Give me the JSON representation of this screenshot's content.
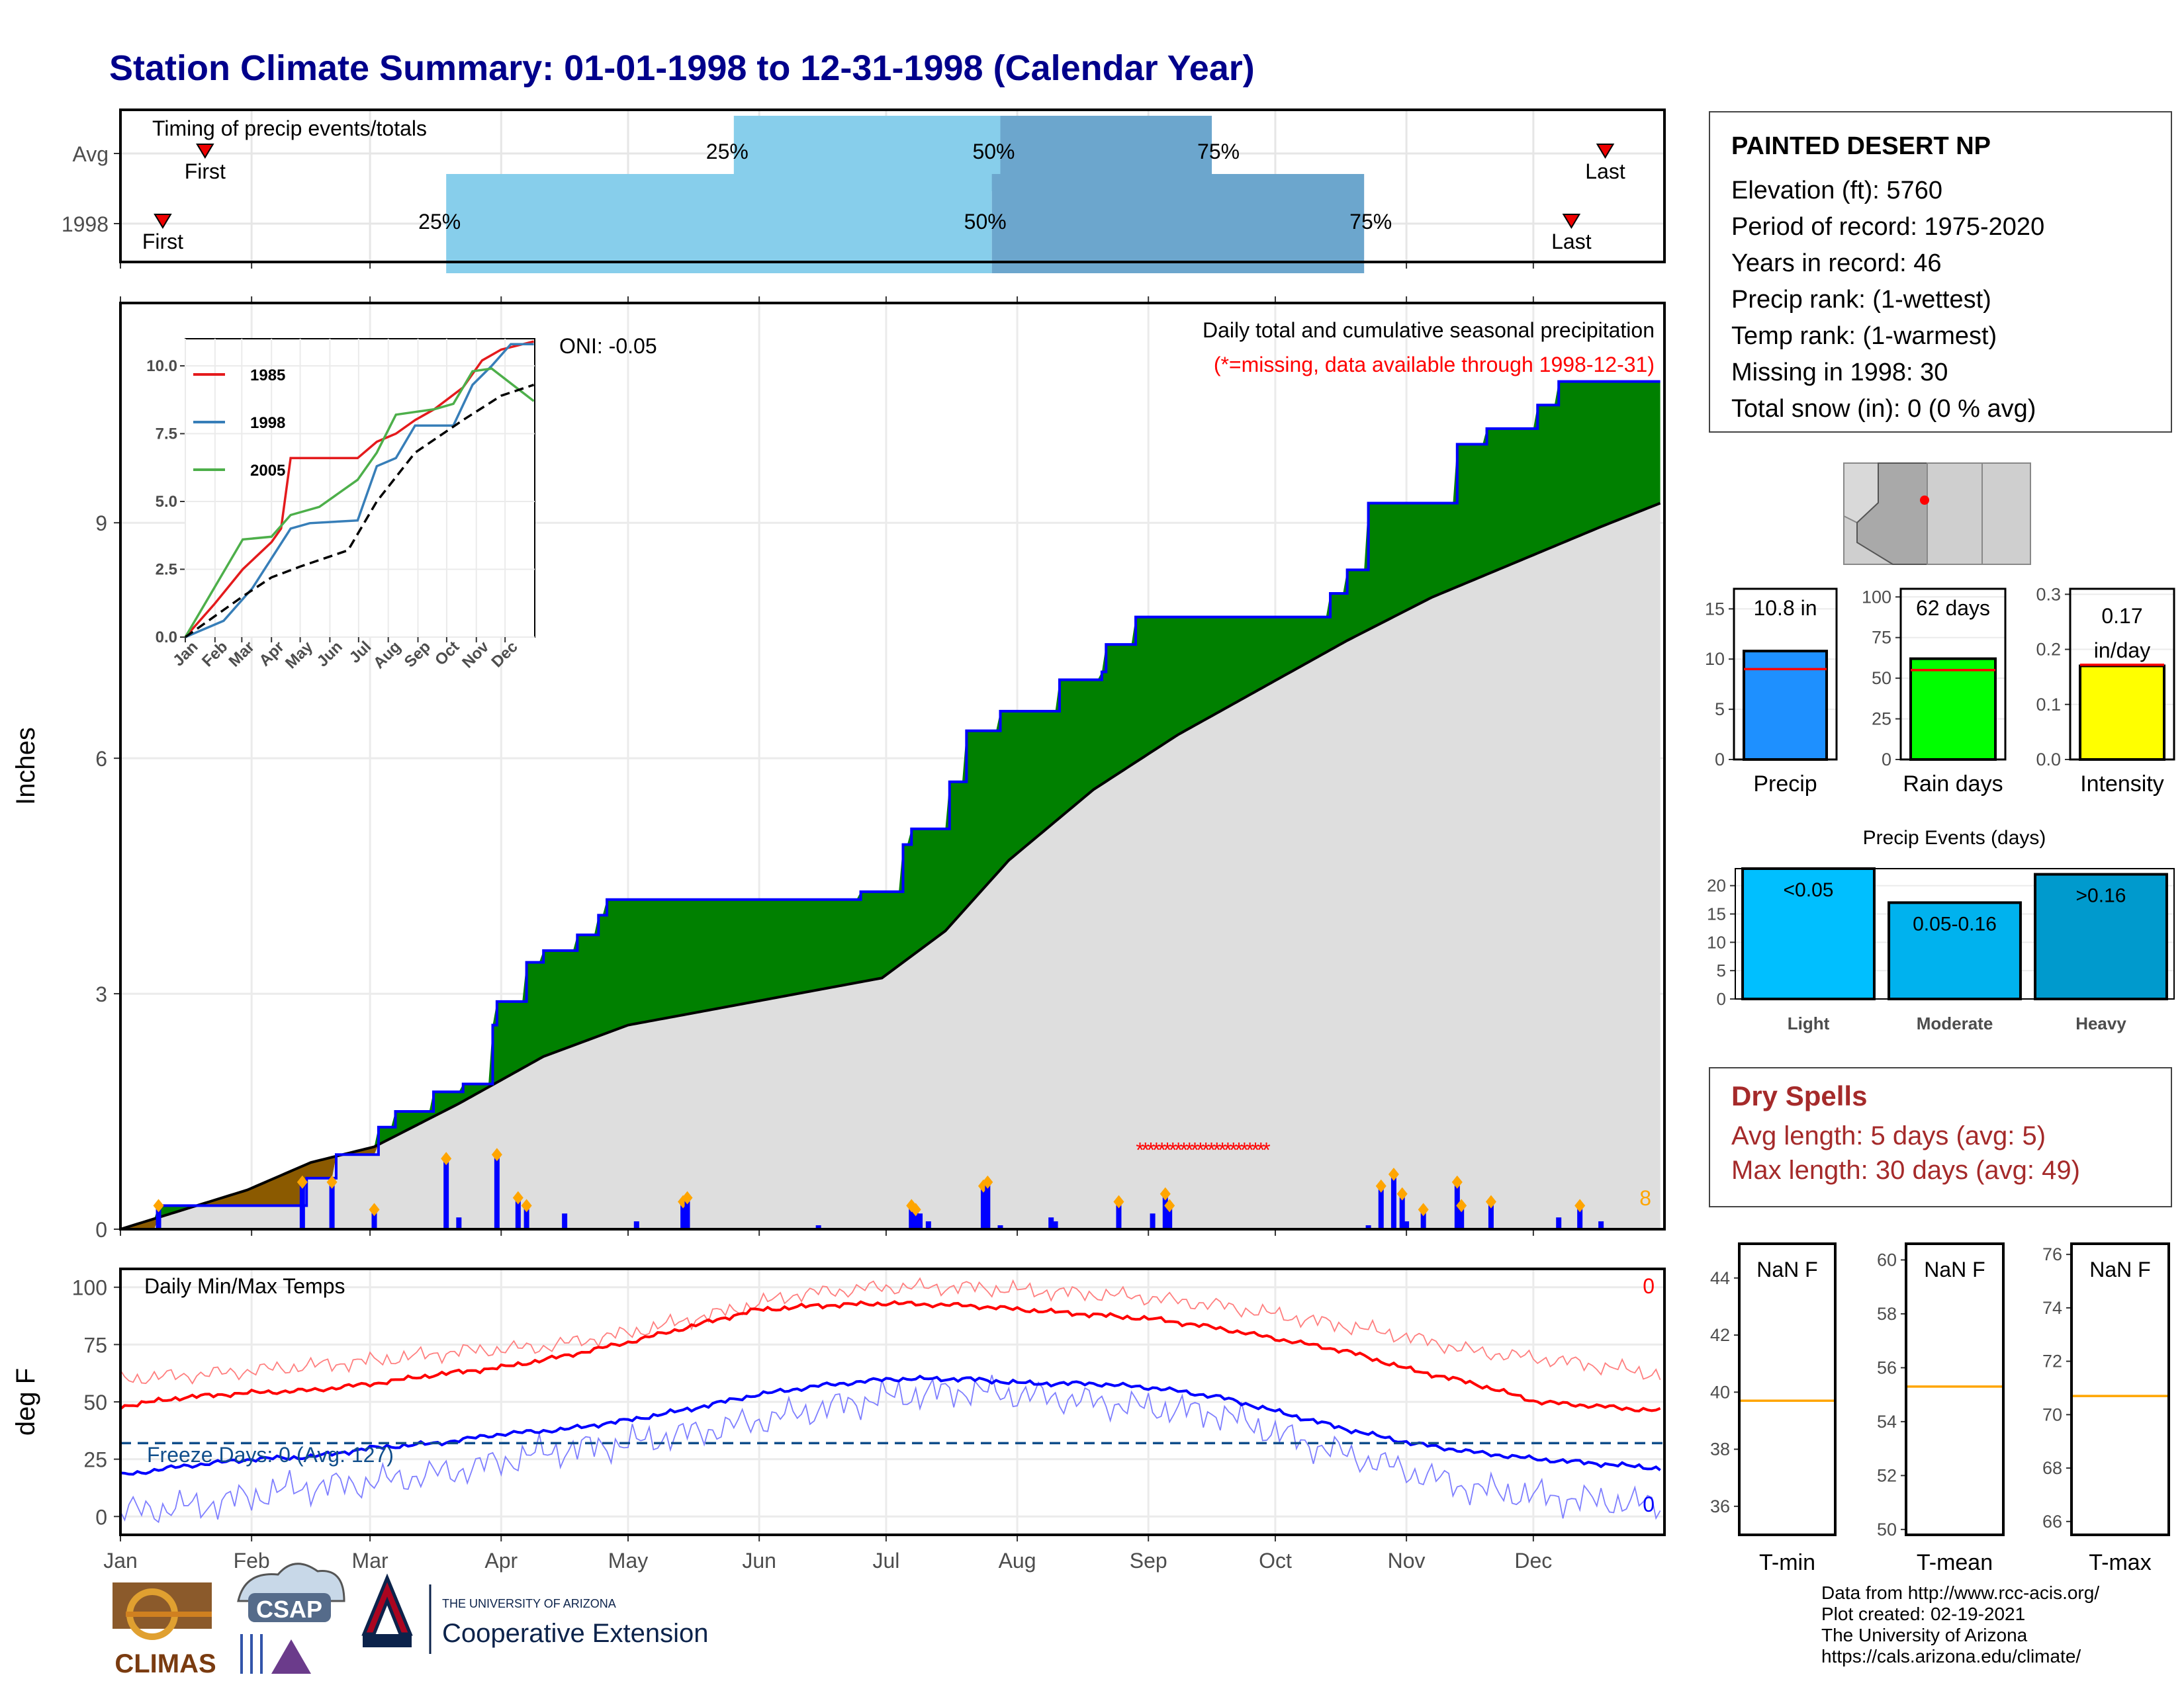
{
  "title": "Station Climate Summary: 01-01-1998 to 12-31-1998 (Calendar Year)",
  "timing": {
    "label": "Timing of precip events/totals",
    "rows": [
      {
        "name": "Avg",
        "first_doy": 20,
        "q25_doy": 145,
        "q50_doy": 208,
        "q75_doy": 258,
        "last_doy": 351
      },
      {
        "name": "1998",
        "first_doy": 10,
        "q25_doy": 77,
        "q50_doy": 206,
        "q75_doy": 294,
        "last_doy": 343
      }
    ],
    "first_label": "First",
    "last_label": "Last",
    "q25_label": "25%",
    "q50_label": "50%",
    "q75_label": "75%"
  },
  "precip": {
    "ylabel": "Inches",
    "yticks": [
      "0",
      "3",
      "6",
      "9"
    ],
    "annot_title": "Daily total and cumulative seasonal precipitation",
    "annot_missing": "(*=missing, data available through 1998-12-31)",
    "oni": "ONI: -0.05",
    "count_label": "8",
    "months": [
      "Jan",
      "Feb",
      "Mar",
      "Apr",
      "May",
      "Jun",
      "Jul",
      "Aug",
      "Sep",
      "Oct",
      "Nov",
      "Dec"
    ]
  },
  "inset": {
    "yticks": [
      "0.0",
      "2.5",
      "5.0",
      "7.5",
      "10.0"
    ],
    "months": [
      "Jan",
      "Feb",
      "Mar",
      "Apr",
      "May",
      "Jun",
      "Jul",
      "Aug",
      "Sep",
      "Oct",
      "Nov",
      "Dec"
    ],
    "legend": [
      {
        "name": "1985",
        "color": "#e41a1c"
      },
      {
        "name": "1998",
        "color": "#377eb8"
      },
      {
        "name": "2005",
        "color": "#4daf4a"
      }
    ]
  },
  "temps": {
    "ylabel": "deg F",
    "label": "Daily Min/Max Temps",
    "freeze": "Freeze Days: 0 (Avg: 127)",
    "max_count": "0",
    "min_count": "0",
    "yticks": [
      "0",
      "25",
      "50",
      "75",
      "100"
    ],
    "months": [
      "Jan",
      "Feb",
      "Mar",
      "Apr",
      "May",
      "Jun",
      "Jul",
      "Aug",
      "Sep",
      "Oct",
      "Nov",
      "Dec"
    ]
  },
  "station": {
    "name": "PAINTED DESERT NP",
    "lines": [
      "Elevation (ft): 5760",
      "Period of record: 1975-2020",
      "Years in record: 46",
      "Precip rank:  (1-wettest)",
      "Temp rank:  (1-warmest)",
      "Missing in 1998: 30",
      "Total snow (in): 0 (0 % avg)"
    ]
  },
  "minibars": [
    {
      "label": "Precip",
      "value_label": "10.8 in",
      "color": "#1e90ff",
      "yticks": [
        "0",
        "5",
        "10",
        "15"
      ]
    },
    {
      "label": "Rain days",
      "value_label": "62 days",
      "color": "#00ff00",
      "yticks": [
        "0",
        "25",
        "50",
        "75",
        "100"
      ]
    },
    {
      "label": "Intensity",
      "value_label_1": "0.17",
      "value_label_2": "in/day",
      "color": "#ffff00",
      "yticks": [
        "0.0",
        "0.1",
        "0.2",
        "0.3"
      ]
    }
  ],
  "events": {
    "title": "Precip Events (days)",
    "yticks": [
      "0",
      "5",
      "10",
      "15",
      "20"
    ],
    "bars": [
      {
        "category": "Light",
        "label": "<0.05",
        "value": 23,
        "color": "#00bfff"
      },
      {
        "category": "Moderate",
        "label": "0.05-0.16",
        "value": 17,
        "color": "#00b2ee"
      },
      {
        "category": "Heavy",
        "label": ">0.16",
        "value": 22,
        "color": "#009acd"
      }
    ]
  },
  "dry_spells": {
    "title": "Dry Spells",
    "avg": "Avg length: 5 days (avg: 5)",
    "max": "Max length: 30 days (avg: 49)"
  },
  "tbars": [
    {
      "label": "T-min",
      "value_label": "NaN F",
      "yticks": [
        "36",
        "38",
        "40",
        "42",
        "44"
      ]
    },
    {
      "label": "T-mean",
      "value_label": "NaN F",
      "yticks": [
        "50",
        "52",
        "54",
        "56",
        "58",
        "60"
      ]
    },
    {
      "label": "T-max",
      "value_label": "NaN F",
      "yticks": [
        "66",
        "68",
        "70",
        "72",
        "74",
        "76"
      ]
    }
  ],
  "logos": {
    "climas": "CLIMAS",
    "csap": "CSAP",
    "ua_small": "THE UNIVERSITY OF ARIZONA",
    "ua_big": "Cooperative Extension"
  },
  "credits": [
    "Data from http://www.rcc-acis.org/",
    "Plot created: 02-19-2021",
    "The University of Arizona",
    "https://cals.arizona.edu/climate/"
  ],
  "chart_data": [
    {
      "type": "area",
      "title": "Daily total and cumulative seasonal precipitation",
      "ylabel": "Inches",
      "ylim": [
        0,
        11.8
      ],
      "x_units": "day of year",
      "cumulative_1998": [
        [
          0,
          0
        ],
        [
          9,
          0.3
        ],
        [
          43,
          0.3
        ],
        [
          44,
          0.65
        ],
        [
          50,
          0.65
        ],
        [
          51,
          0.95
        ],
        [
          60,
          0.95
        ],
        [
          61,
          1.3
        ],
        [
          64,
          1.3
        ],
        [
          65,
          1.5
        ],
        [
          73,
          1.5
        ],
        [
          74,
          1.75
        ],
        [
          80,
          1.75
        ],
        [
          81,
          1.85
        ],
        [
          87,
          1.85
        ],
        [
          88,
          2.6
        ],
        [
          89,
          2.9
        ],
        [
          95,
          2.9
        ],
        [
          96,
          3.4
        ],
        [
          100,
          3.55
        ],
        [
          108,
          3.75
        ],
        [
          112,
          3.75
        ],
        [
          113,
          4.0
        ],
        [
          115,
          4.2
        ],
        [
          175,
          4.3
        ],
        [
          184,
          4.3
        ],
        [
          185,
          4.9
        ],
        [
          187,
          5.1
        ],
        [
          195,
          5.1
        ],
        [
          196,
          5.7
        ],
        [
          200,
          6.35
        ],
        [
          207,
          6.35
        ],
        [
          208,
          6.6
        ],
        [
          221,
          6.6
        ],
        [
          222,
          7.0
        ],
        [
          232,
          7.1
        ],
        [
          233,
          7.45
        ],
        [
          240,
          7.8
        ],
        [
          285,
          7.8
        ],
        [
          286,
          8.1
        ],
        [
          290,
          8.4
        ],
        [
          295,
          9.25
        ],
        [
          315,
          9.25
        ],
        [
          316,
          10.0
        ],
        [
          323,
          10.2
        ],
        [
          335,
          10.5
        ],
        [
          340,
          10.8
        ],
        [
          364,
          10.8
        ]
      ],
      "cumulative_avg": [
        [
          0,
          0
        ],
        [
          30,
          0.5
        ],
        [
          45,
          0.85
        ],
        [
          60,
          1.05
        ],
        [
          80,
          1.6
        ],
        [
          100,
          2.2
        ],
        [
          120,
          2.6
        ],
        [
          150,
          2.9
        ],
        [
          180,
          3.2
        ],
        [
          195,
          3.8
        ],
        [
          210,
          4.7
        ],
        [
          230,
          5.6
        ],
        [
          250,
          6.3
        ],
        [
          270,
          6.9
        ],
        [
          290,
          7.5
        ],
        [
          310,
          8.05
        ],
        [
          330,
          8.5
        ],
        [
          350,
          8.95
        ],
        [
          364,
          9.25
        ]
      ],
      "daily": [
        [
          9,
          0.3
        ],
        [
          43,
          0.6
        ],
        [
          50,
          0.6
        ],
        [
          60,
          0.25
        ],
        [
          77,
          0.9
        ],
        [
          80,
          0.15
        ],
        [
          89,
          0.95
        ],
        [
          94,
          0.4
        ],
        [
          96,
          0.3
        ],
        [
          105,
          0.2
        ],
        [
          122,
          0.1
        ],
        [
          133,
          0.35
        ],
        [
          134,
          0.4
        ],
        [
          165,
          0.05
        ],
        [
          187,
          0.3
        ],
        [
          188,
          0.25
        ],
        [
          189,
          0.2
        ],
        [
          191,
          0.1
        ],
        [
          204,
          0.55
        ],
        [
          205,
          0.6
        ],
        [
          208,
          0.05
        ],
        [
          220,
          0.15
        ],
        [
          221,
          0.1
        ],
        [
          236,
          0.35
        ],
        [
          244,
          0.2
        ],
        [
          247,
          0.45
        ],
        [
          248,
          0.3
        ],
        [
          295,
          0.05
        ],
        [
          298,
          0.55
        ],
        [
          301,
          0.7
        ],
        [
          303,
          0.45
        ],
        [
          304,
          0.1
        ],
        [
          308,
          0.25
        ],
        [
          316,
          0.6
        ],
        [
          317,
          0.3
        ],
        [
          324,
          0.35
        ],
        [
          340,
          0.15
        ],
        [
          345,
          0.3
        ],
        [
          350,
          0.1
        ]
      ],
      "dry_spell": [
        241,
        272
      ]
    },
    {
      "type": "line",
      "title": "Daily Min/Max Temps",
      "ylabel": "deg F",
      "ylim": [
        -8,
        108
      ],
      "freeze_line": 32,
      "avg_max": [
        [
          0,
          48
        ],
        [
          15,
          52
        ],
        [
          31,
          54
        ],
        [
          45,
          55
        ],
        [
          60,
          58
        ],
        [
          75,
          62
        ],
        [
          90,
          65
        ],
        [
          105,
          70
        ],
        [
          120,
          76
        ],
        [
          135,
          83
        ],
        [
          150,
          90
        ],
        [
          165,
          92
        ],
        [
          182,
          93
        ],
        [
          200,
          92
        ],
        [
          215,
          90
        ],
        [
          230,
          88
        ],
        [
          245,
          86
        ],
        [
          260,
          82
        ],
        [
          275,
          77
        ],
        [
          290,
          72
        ],
        [
          305,
          64
        ],
        [
          320,
          58
        ],
        [
          335,
          50
        ],
        [
          350,
          48
        ],
        [
          364,
          46
        ]
      ],
      "avg_min": [
        [
          0,
          18
        ],
        [
          15,
          22
        ],
        [
          31,
          25
        ],
        [
          45,
          26
        ],
        [
          60,
          30
        ],
        [
          75,
          32
        ],
        [
          90,
          36
        ],
        [
          105,
          38
        ],
        [
          120,
          42
        ],
        [
          135,
          47
        ],
        [
          150,
          53
        ],
        [
          165,
          57
        ],
        [
          182,
          60
        ],
        [
          200,
          60
        ],
        [
          215,
          58
        ],
        [
          230,
          58
        ],
        [
          245,
          56
        ],
        [
          260,
          52
        ],
        [
          275,
          45
        ],
        [
          290,
          38
        ],
        [
          305,
          32
        ],
        [
          320,
          28
        ],
        [
          335,
          25
        ],
        [
          350,
          23
        ],
        [
          364,
          21
        ]
      ],
      "obs_max": [
        [
          0,
          60
        ],
        [
          20,
          62
        ],
        [
          40,
          65
        ],
        [
          60,
          68
        ],
        [
          80,
          72
        ],
        [
          100,
          74
        ],
        [
          120,
          80
        ],
        [
          140,
          88
        ],
        [
          160,
          97
        ],
        [
          180,
          100
        ],
        [
          200,
          100
        ],
        [
          220,
          98
        ],
        [
          240,
          96
        ],
        [
          260,
          92
        ],
        [
          280,
          86
        ],
        [
          300,
          80
        ],
        [
          320,
          72
        ],
        [
          340,
          68
        ],
        [
          364,
          62
        ]
      ],
      "obs_min": [
        [
          0,
          2
        ],
        [
          20,
          5
        ],
        [
          40,
          12
        ],
        [
          60,
          15
        ],
        [
          80,
          20
        ],
        [
          100,
          28
        ],
        [
          120,
          32
        ],
        [
          140,
          38
        ],
        [
          160,
          45
        ],
        [
          180,
          52
        ],
        [
          200,
          55
        ],
        [
          220,
          52
        ],
        [
          240,
          48
        ],
        [
          260,
          45
        ],
        [
          280,
          32
        ],
        [
          300,
          22
        ],
        [
          320,
          12
        ],
        [
          340,
          8
        ],
        [
          364,
          5
        ]
      ]
    },
    {
      "type": "line",
      "title": "",
      "ylim": [
        0,
        11
      ],
      "series": [
        {
          "name": "1985",
          "values": [
            [
              0,
              0
            ],
            [
              30,
              1.2
            ],
            [
              60,
              2.5
            ],
            [
              90,
              3.5
            ],
            [
              100,
              4.0
            ],
            [
              110,
              6.6
            ],
            [
              160,
              6.6
            ],
            [
              180,
              6.6
            ],
            [
              200,
              7.2
            ],
            [
              220,
              7.5
            ],
            [
              240,
              8.0
            ],
            [
              260,
              8.4
            ],
            [
              290,
              9.2
            ],
            [
              310,
              10.2
            ],
            [
              330,
              10.6
            ],
            [
              364,
              10.9
            ]
          ]
        },
        {
          "name": "1998",
          "values": [
            [
              0,
              0
            ],
            [
              40,
              0.6
            ],
            [
              70,
              1.8
            ],
            [
              90,
              2.9
            ],
            [
              110,
              4.0
            ],
            [
              130,
              4.2
            ],
            [
              180,
              4.3
            ],
            [
              200,
              6.3
            ],
            [
              220,
              6.6
            ],
            [
              240,
              7.8
            ],
            [
              280,
              7.8
            ],
            [
              300,
              9.3
            ],
            [
              320,
              10.0
            ],
            [
              340,
              10.8
            ],
            [
              364,
              10.8
            ]
          ]
        },
        {
          "name": "2005",
          "values": [
            [
              0,
              0
            ],
            [
              30,
              1.8
            ],
            [
              60,
              3.6
            ],
            [
              90,
              3.7
            ],
            [
              110,
              4.5
            ],
            [
              140,
              4.8
            ],
            [
              180,
              5.8
            ],
            [
              200,
              6.8
            ],
            [
              220,
              8.2
            ],
            [
              240,
              8.3
            ],
            [
              260,
              8.4
            ],
            [
              280,
              8.6
            ],
            [
              300,
              9.8
            ],
            [
              320,
              9.9
            ],
            [
              364,
              8.7
            ]
          ]
        }
      ],
      "average": [
        [
          0,
          0
        ],
        [
          60,
          1.5
        ],
        [
          90,
          2.2
        ],
        [
          120,
          2.6
        ],
        [
          170,
          3.2
        ],
        [
          200,
          5.0
        ],
        [
          240,
          6.8
        ],
        [
          290,
          8.0
        ],
        [
          330,
          8.9
        ],
        [
          364,
          9.3
        ]
      ]
    },
    {
      "type": "bar",
      "categories": [
        "Precip"
      ],
      "values": [
        10.8
      ],
      "average": 9.0,
      "ylim": [
        0,
        17
      ]
    },
    {
      "type": "bar",
      "categories": [
        "Rain days"
      ],
      "values": [
        62
      ],
      "average": 55,
      "ylim": [
        0,
        105
      ]
    },
    {
      "type": "bar",
      "categories": [
        "Intensity"
      ],
      "values": [
        0.17
      ],
      "average": 0.172,
      "ylim": [
        0,
        0.31
      ]
    },
    {
      "type": "bar",
      "title": "Precip Events (days)",
      "categories": [
        "Light",
        "Moderate",
        "Heavy"
      ],
      "values": [
        23,
        17,
        22
      ],
      "ylim": [
        0,
        23
      ]
    }
  ]
}
